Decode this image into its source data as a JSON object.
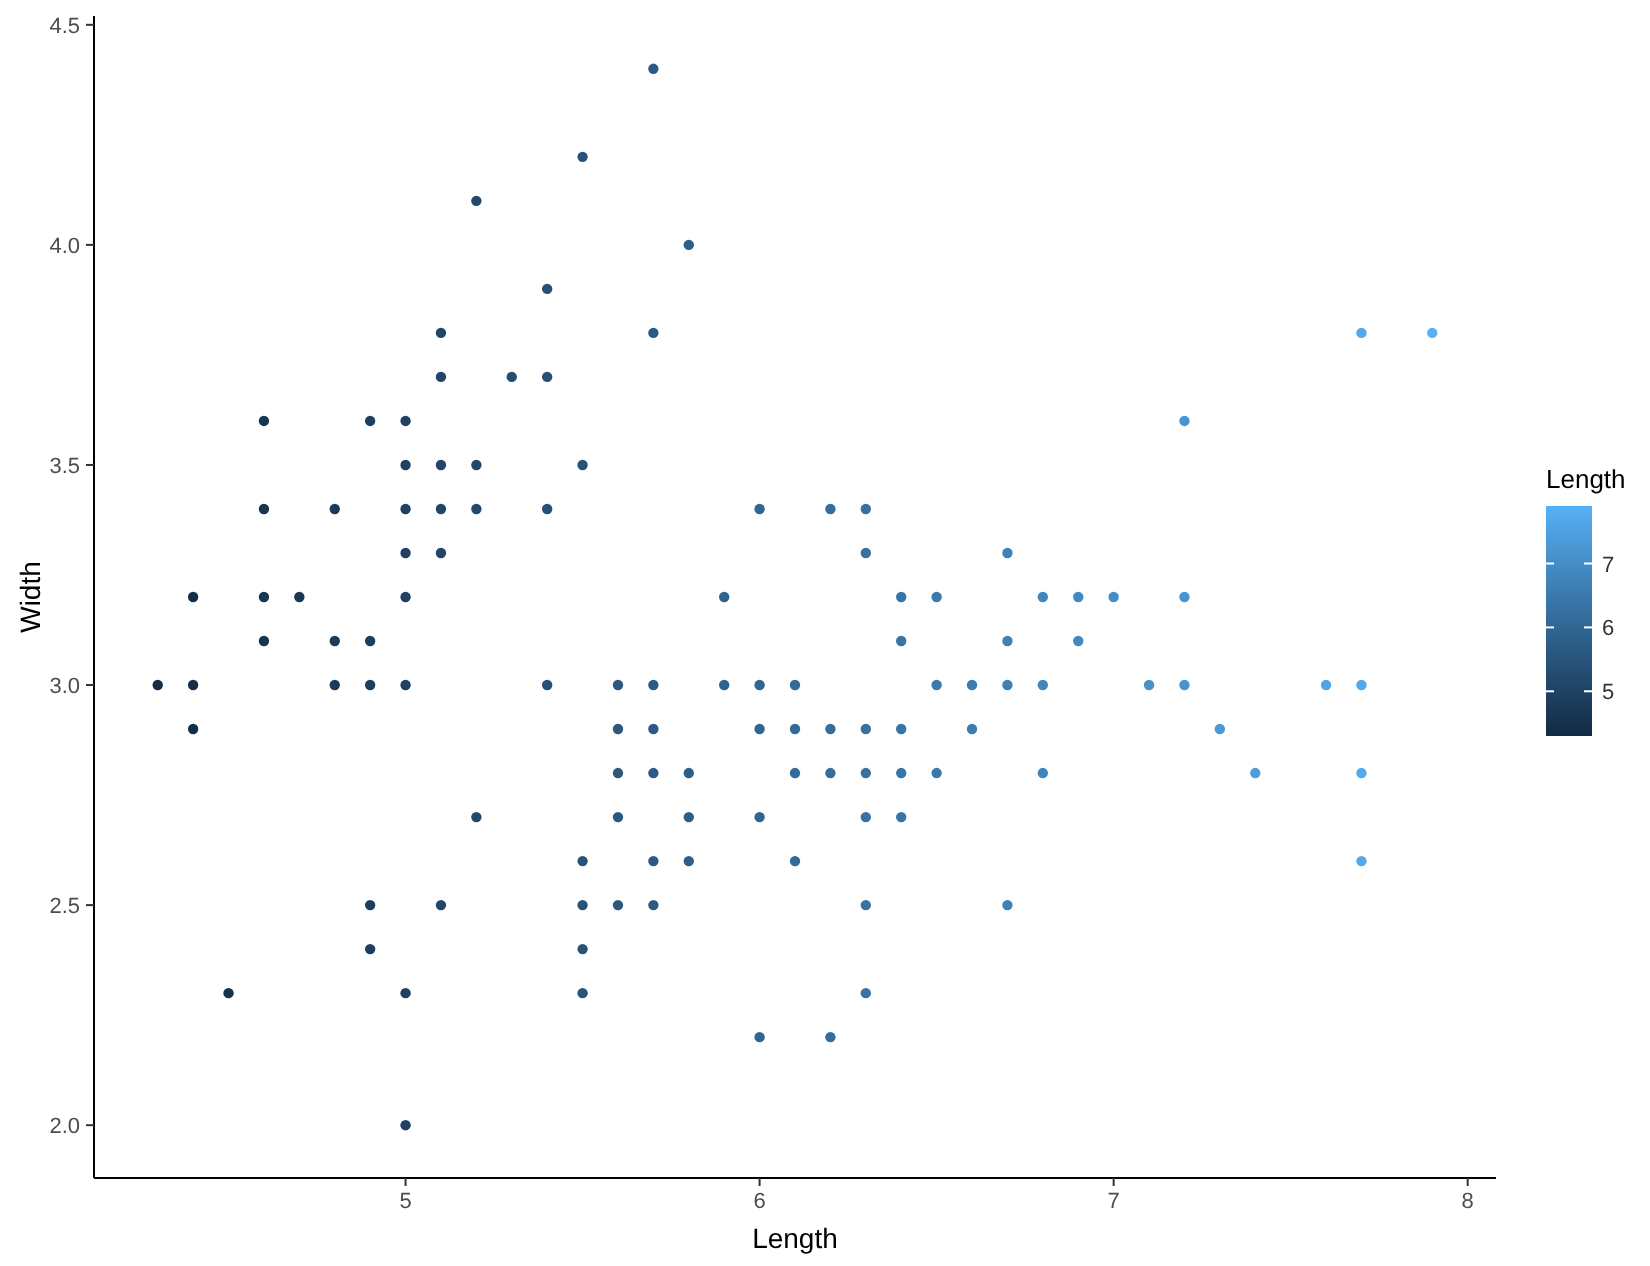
{
  "chart_data": {
    "type": "scatter",
    "xlabel": "Length",
    "ylabel": "Width",
    "clabel": "Length",
    "xlim": [
      4.12,
      8.08
    ],
    "xticks": [
      5,
      6,
      7,
      8
    ],
    "ylim": [
      1.88,
      4.52
    ],
    "yticks": [
      {
        "value": 2,
        "label": "2.0"
      },
      {
        "value": 2.5,
        "label": "2.5"
      },
      {
        "value": 3,
        "label": "3.0"
      },
      {
        "value": 3.5,
        "label": "3.5"
      },
      {
        "value": 4,
        "label": "4.0"
      },
      {
        "value": 4.5,
        "label": "4.5"
      }
    ],
    "clim": [
      4.3,
      7.9
    ],
    "cticks": [
      5,
      6,
      7
    ],
    "grid": false,
    "marker": "circle",
    "x": [
      5.1,
      4.9,
      4.7,
      4.6,
      5.0,
      5.4,
      4.6,
      5.0,
      4.4,
      4.9,
      5.4,
      4.8,
      4.8,
      4.3,
      5.8,
      5.7,
      5.7,
      5.1,
      5.4,
      5.1,
      4.6,
      5.1,
      5.0,
      5.2,
      5.2,
      4.8,
      5.2,
      5.5,
      5.0,
      5.5,
      4.9,
      4.4,
      5.1,
      5.0,
      4.5,
      4.4,
      4.6,
      5.3,
      5.0,
      7.0,
      6.4,
      6.9,
      5.5,
      6.5,
      5.7,
      6.3,
      4.9,
      6.6,
      5.2,
      5.0,
      5.9,
      6.0,
      6.1,
      5.6,
      6.7,
      5.6,
      5.8,
      6.2,
      5.6,
      5.9,
      6.1,
      6.3,
      6.4,
      6.6,
      6.8,
      6.7,
      6.0,
      5.7,
      5.5,
      6.0,
      5.4,
      6.0,
      6.3,
      5.5,
      5.5,
      6.1,
      5.8,
      5.0,
      5.6,
      5.7,
      5.7,
      6.2,
      5.1,
      7.1,
      6.3,
      6.5,
      7.6,
      4.9,
      7.3,
      6.7,
      7.2,
      6.5,
      6.4,
      6.8,
      5.7,
      5.8,
      7.7,
      7.7,
      6.9,
      5.6,
      7.7,
      6.3,
      6.7,
      7.2,
      6.2,
      6.4,
      7.2,
      7.4,
      7.9,
      6.3,
      6.1,
      7.7,
      6.3,
      6.4,
      6.0,
      6.8,
      6.2
    ],
    "values": [
      3.5,
      3.0,
      3.2,
      3.1,
      3.6,
      3.9,
      3.4,
      3.4,
      2.9,
      3.1,
      3.7,
      3.4,
      3.0,
      3.0,
      4.0,
      4.4,
      3.8,
      3.8,
      3.4,
      3.7,
      3.6,
      3.3,
      3.0,
      3.5,
      3.4,
      3.1,
      4.1,
      4.2,
      3.2,
      3.5,
      3.6,
      3.0,
      3.4,
      3.5,
      2.3,
      3.2,
      3.2,
      3.7,
      3.3,
      3.2,
      3.2,
      3.1,
      2.3,
      2.8,
      2.8,
      3.3,
      2.4,
      2.9,
      2.7,
      2.0,
      3.0,
      2.2,
      2.9,
      2.9,
      3.1,
      3.0,
      2.7,
      2.2,
      2.5,
      3.2,
      2.8,
      2.5,
      2.9,
      3.0,
      2.8,
      3.0,
      2.9,
      2.6,
      2.4,
      2.7,
      3.0,
      3.4,
      2.3,
      2.5,
      2.6,
      3.0,
      2.6,
      2.3,
      2.7,
      3.0,
      2.9,
      2.9,
      2.5,
      3.0,
      2.9,
      3.0,
      3.0,
      2.5,
      2.9,
      2.5,
      3.6,
      3.2,
      2.7,
      3.0,
      2.5,
      2.8,
      3.8,
      2.6,
      3.2,
      2.8,
      2.8,
      2.7,
      3.3,
      3.2,
      2.8,
      2.8,
      3.0,
      2.8,
      3.8,
      2.8,
      2.6,
      3.0,
      3.4,
      3.1,
      3.0,
      3.2,
      3.4
    ],
    "cvalues": [
      5.1,
      4.9,
      4.7,
      4.6,
      5.0,
      5.4,
      4.6,
      5.0,
      4.4,
      4.9,
      5.4,
      4.8,
      4.8,
      4.3,
      5.8,
      5.7,
      5.7,
      5.1,
      5.4,
      5.1,
      4.6,
      5.1,
      5.0,
      5.2,
      5.2,
      4.8,
      5.2,
      5.5,
      5.0,
      5.5,
      4.9,
      4.4,
      5.1,
      5.0,
      4.5,
      4.4,
      4.6,
      5.3,
      5.0,
      7.0,
      6.4,
      6.9,
      5.5,
      6.5,
      5.7,
      6.3,
      4.9,
      6.6,
      5.2,
      5.0,
      5.9,
      6.0,
      6.1,
      5.6,
      6.7,
      5.6,
      5.8,
      6.2,
      5.6,
      5.9,
      6.1,
      6.3,
      6.4,
      6.6,
      6.8,
      6.7,
      6.0,
      5.7,
      5.5,
      6.0,
      5.4,
      6.0,
      6.3,
      5.5,
      5.5,
      6.1,
      5.8,
      5.0,
      5.6,
      5.7,
      5.7,
      6.2,
      5.1,
      7.1,
      6.3,
      6.5,
      7.6,
      4.9,
      7.3,
      6.7,
      7.2,
      6.5,
      6.4,
      6.8,
      5.7,
      5.8,
      7.7,
      7.7,
      6.9,
      5.6,
      7.7,
      6.3,
      6.7,
      7.2,
      6.2,
      6.4,
      7.2,
      7.4,
      7.9,
      6.3,
      6.1,
      7.7,
      6.3,
      6.4,
      6.0,
      6.8,
      6.2
    ]
  }
}
